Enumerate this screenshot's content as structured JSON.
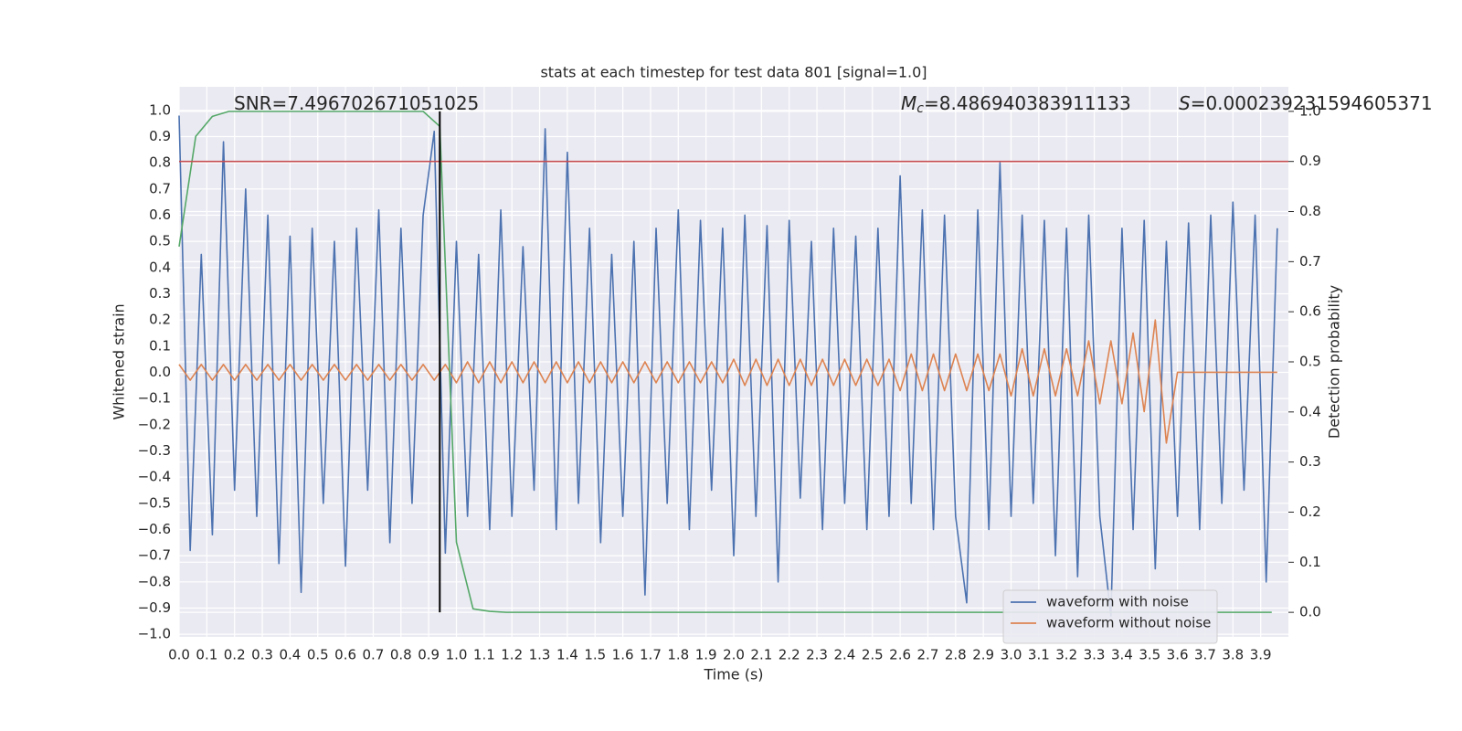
{
  "chart_data": {
    "type": "line",
    "title": "stats at each timestep for test data 801 [signal=1.0]",
    "xlabel": "Time (s)",
    "ylabel": "Whitened strain",
    "y2label": "Detection probability",
    "annotations": [
      {
        "label": "SNR=7.496702671051025"
      },
      {
        "italic": "M",
        "sub": "c",
        "label": "=8.486940383911133"
      },
      {
        "italic": "S",
        "label": "=0.000239231594605371"
      }
    ],
    "xlim": [
      0,
      4.0
    ],
    "ylim": [
      -1.01,
      1.09
    ],
    "y2lim": [
      -0.049,
      1.049
    ],
    "xticks": [
      {
        "value": 0,
        "label": "0.0"
      },
      0.1,
      0.2,
      0.3,
      0.4,
      0.5,
      0.6,
      0.7,
      0.8,
      0.9,
      {
        "value": 1,
        "label": "1.0"
      },
      1.1,
      1.2,
      1.3,
      1.4,
      1.5,
      1.6,
      1.7,
      1.8,
      1.9,
      {
        "value": 2,
        "label": "2.0"
      },
      2.1,
      2.2,
      2.3,
      2.4,
      2.5,
      2.6,
      2.7,
      2.8,
      2.9,
      {
        "value": 3,
        "label": "3.0"
      },
      3.1,
      3.2,
      3.3,
      3.4,
      3.5,
      3.6,
      3.7,
      3.8,
      3.9
    ],
    "yticks": [
      {
        "value": -1,
        "label": "−1.0"
      },
      {
        "value": -0.9,
        "label": "−0.9"
      },
      {
        "value": -0.8,
        "label": "−0.8"
      },
      {
        "value": -0.7,
        "label": "−0.7"
      },
      {
        "value": -0.6,
        "label": "−0.6"
      },
      {
        "value": -0.5,
        "label": "−0.5"
      },
      {
        "value": -0.4,
        "label": "−0.4"
      },
      {
        "value": -0.3,
        "label": "−0.3"
      },
      {
        "value": -0.2,
        "label": "−0.2"
      },
      {
        "value": -0.1,
        "label": "−0.1"
      },
      {
        "value": 0,
        "label": "0.0"
      },
      0.1,
      0.2,
      0.3,
      0.4,
      0.5,
      0.6,
      0.7,
      0.8,
      0.9,
      {
        "value": 1,
        "label": "1.0"
      }
    ],
    "y2ticks": [
      {
        "value": 0,
        "label": "0.0"
      },
      0.1,
      0.2,
      0.3,
      0.4,
      0.5,
      0.6,
      0.7,
      0.8,
      0.9,
      {
        "value": 1,
        "label": "1.0"
      }
    ],
    "grid": true,
    "legend": "lower right",
    "x": [
      0,
      0.04,
      0.08,
      0.12,
      0.16,
      0.2,
      0.24,
      0.28,
      0.32,
      0.36,
      0.4,
      0.44,
      0.48,
      0.52,
      0.56,
      0.6,
      0.64,
      0.68,
      0.72,
      0.76,
      0.8,
      0.84,
      0.88,
      0.92,
      0.96,
      1.0,
      1.04,
      1.08,
      1.12,
      1.16,
      1.2,
      1.24,
      1.28,
      1.32,
      1.36,
      1.4,
      1.44,
      1.48,
      1.52,
      1.56,
      1.6,
      1.64,
      1.68,
      1.72,
      1.76,
      1.8,
      1.84,
      1.88,
      1.92,
      1.96,
      2.0,
      2.04,
      2.08,
      2.12,
      2.16,
      2.2,
      2.24,
      2.28,
      2.32,
      2.36,
      2.4,
      2.44,
      2.48,
      2.52,
      2.56,
      2.6,
      2.64,
      2.68,
      2.72,
      2.76,
      2.8,
      2.84,
      2.88,
      2.92,
      2.96,
      3.0,
      3.04,
      3.08,
      3.12,
      3.16,
      3.2,
      3.24,
      3.28,
      3.32,
      3.36,
      3.4,
      3.44,
      3.48,
      3.52,
      3.56,
      3.6,
      3.64,
      3.68,
      3.72,
      3.76,
      3.8,
      3.84,
      3.88,
      3.92,
      3.96
    ],
    "series": [
      {
        "name": "waveform with noise",
        "color": "#4c72b0",
        "values": [
          0.98,
          -0.68,
          0.45,
          -0.62,
          0.88,
          -0.45,
          0.7,
          -0.55,
          0.6,
          -0.73,
          0.52,
          -0.84,
          0.55,
          -0.5,
          0.5,
          -0.74,
          0.55,
          -0.45,
          0.62,
          -0.65,
          0.55,
          -0.5,
          0.6,
          0.92,
          -0.69,
          0.5,
          -0.55,
          0.45,
          -0.6,
          0.62,
          -0.55,
          0.48,
          -0.45,
          0.93,
          -0.6,
          0.84,
          -0.5,
          0.55,
          -0.65,
          0.45,
          -0.55,
          0.5,
          -0.85,
          0.55,
          -0.5,
          0.62,
          -0.6,
          0.58,
          -0.45,
          0.55,
          -0.7,
          0.6,
          -0.55,
          0.56,
          -0.8,
          0.58,
          -0.48,
          0.5,
          -0.6,
          0.55,
          -0.5,
          0.52,
          -0.6,
          0.55,
          -0.55,
          0.75,
          -0.5,
          0.62,
          -0.6,
          0.6,
          -0.55,
          -0.88,
          0.62,
          -0.6,
          0.8,
          -0.55,
          0.6,
          -0.5,
          0.58,
          -0.7,
          0.55,
          -0.78,
          0.6,
          -0.55,
          -0.93,
          0.55,
          -0.6,
          0.58,
          -0.75,
          0.5,
          -0.55,
          0.57,
          -0.6,
          0.6,
          -0.5,
          0.65,
          -0.45,
          0.6,
          -0.8,
          0.55
        ]
      },
      {
        "name": "waveform without noise",
        "color": "#dd8452",
        "values": [
          0.03,
          -0.03,
          0.03,
          -0.03,
          0.03,
          -0.03,
          0.03,
          -0.03,
          0.03,
          -0.03,
          0.03,
          -0.03,
          0.03,
          -0.03,
          0.03,
          -0.03,
          0.03,
          -0.03,
          0.03,
          -0.03,
          0.03,
          -0.03,
          0.03,
          -0.03,
          0.03,
          -0.04,
          0.04,
          -0.04,
          0.04,
          -0.04,
          0.04,
          -0.04,
          0.04,
          -0.04,
          0.04,
          -0.04,
          0.04,
          -0.04,
          0.04,
          -0.04,
          0.04,
          -0.04,
          0.04,
          -0.04,
          0.04,
          -0.04,
          0.04,
          -0.04,
          0.04,
          -0.04,
          0.05,
          -0.05,
          0.05,
          -0.05,
          0.05,
          -0.05,
          0.05,
          -0.05,
          0.05,
          -0.05,
          0.05,
          -0.05,
          0.05,
          -0.05,
          0.05,
          -0.07,
          0.07,
          -0.07,
          0.07,
          -0.07,
          0.07,
          -0.07,
          0.07,
          -0.07,
          0.07,
          -0.09,
          0.09,
          -0.09,
          0.09,
          -0.09,
          0.09,
          -0.09,
          0.12,
          -0.12,
          0.12,
          -0.12,
          0.15,
          -0.15,
          0.2,
          -0.27,
          0,
          0,
          0,
          0,
          0,
          0,
          0,
          0,
          0,
          0
        ]
      },
      {
        "color": "#55a868",
        "axis": "y2",
        "x": [
          0,
          0.06,
          0.12,
          0.18,
          0.88,
          0.94,
          1.0,
          1.06,
          1.12,
          1.18,
          3.94
        ],
        "values": [
          0.73,
          0.95,
          0.99,
          1.0,
          1.0,
          0.97,
          0.14,
          0.007,
          0.002,
          0,
          0
        ]
      }
    ],
    "threshold": {
      "value": 0.9,
      "axis": "y2",
      "color": "#c44e52"
    },
    "vline": {
      "x": 0.94,
      "ymin": 0,
      "ymax": 1,
      "axis": "y2",
      "color": "#000000"
    }
  }
}
